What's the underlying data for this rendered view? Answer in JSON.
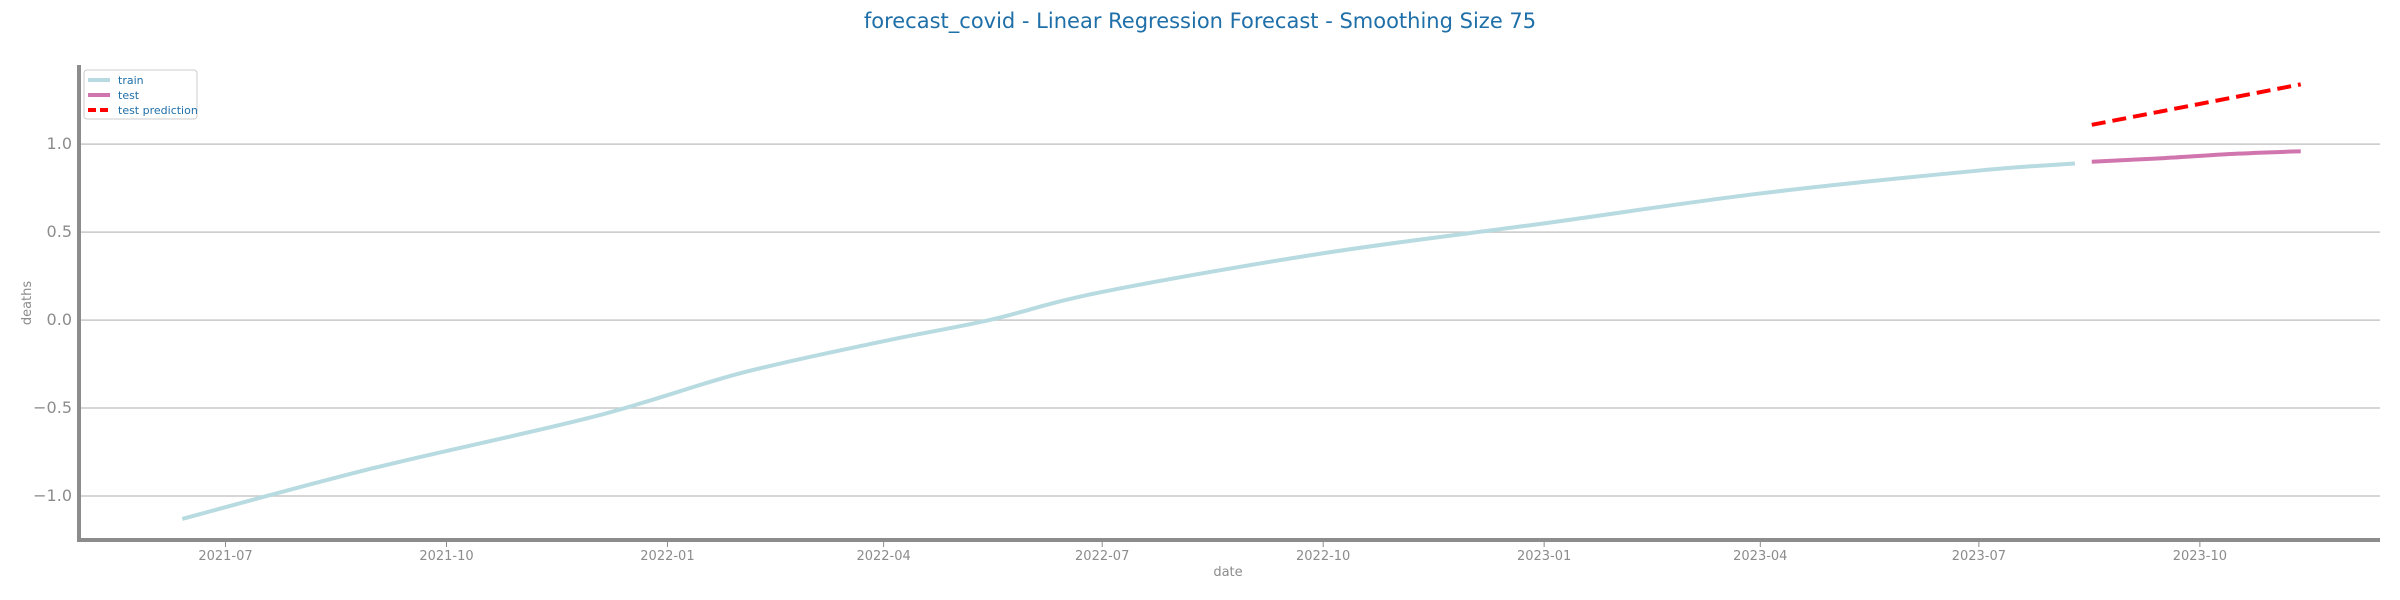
{
  "chart_data": {
    "type": "line",
    "title": "forecast_covid - Linear Regression Forecast - Smoothing Size 75",
    "xlabel": "date",
    "ylabel": "deaths",
    "xlim": [
      "2021-05-01",
      "2023-12-15"
    ],
    "ylim": [
      -1.25,
      1.45
    ],
    "y_ticks": [
      -1.0,
      -0.5,
      0.0,
      0.5,
      1.0
    ],
    "y_tick_labels": [
      "−1.0",
      "−0.5",
      "0.0",
      "0.5",
      "1.0"
    ],
    "x_ticks": [
      "2021-07-01",
      "2021-10-01",
      "2022-01-01",
      "2022-04-01",
      "2022-07-01",
      "2022-10-01",
      "2023-01-01",
      "2023-04-01",
      "2023-07-01",
      "2023-10-01"
    ],
    "x_tick_labels": [
      "2021-07",
      "2021-10",
      "2022-01",
      "2022-04",
      "2022-07",
      "2022-10",
      "2023-01",
      "2023-04",
      "2023-07",
      "2023-10"
    ],
    "grid": "horizontal",
    "legend_position": "top-left",
    "colors": {
      "title": "#1f6fa8",
      "legend_text": "#1f6fa8",
      "axis": "#8c8c8c",
      "grid": "#c8c8c8"
    },
    "series": [
      {
        "name": "train",
        "color": "#b7dbe0",
        "style": "solid",
        "x": [
          "2021-06-13",
          "2021-09-01",
          "2021-12-01",
          "2022-02-01",
          "2022-04-01",
          "2022-05-15",
          "2022-07-01",
          "2022-10-01",
          "2023-01-01",
          "2023-04-01",
          "2023-07-01",
          "2023-08-10"
        ],
        "y": [
          -1.13,
          -0.84,
          -0.55,
          -0.3,
          -0.12,
          0.0,
          0.16,
          0.38,
          0.55,
          0.72,
          0.85,
          0.89
        ]
      },
      {
        "name": "test",
        "color": "#d175ae",
        "style": "solid",
        "x": [
          "2023-08-17",
          "2023-09-15",
          "2023-10-15",
          "2023-11-12"
        ],
        "y": [
          0.9,
          0.92,
          0.945,
          0.96
        ]
      },
      {
        "name": "test prediction",
        "color": "#ff0000",
        "style": "dashed",
        "x": [
          "2023-08-17",
          "2023-11-12"
        ],
        "y": [
          1.11,
          1.34
        ]
      }
    ]
  }
}
